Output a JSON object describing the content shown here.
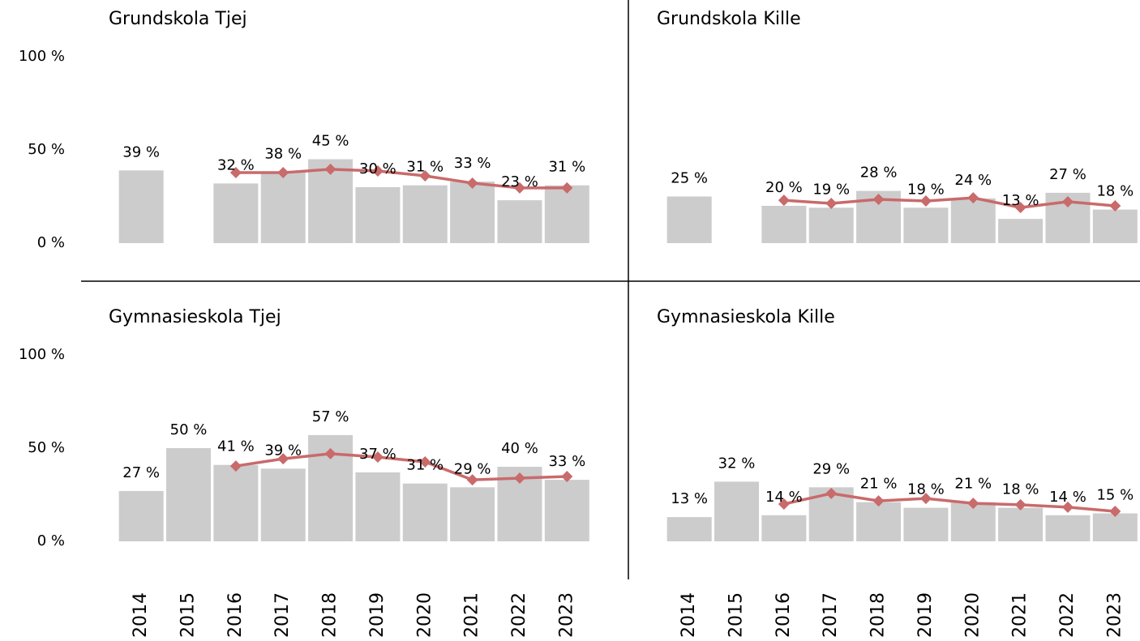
{
  "chart_data": [
    {
      "type": "combo",
      "title": "Grundskola Tjej",
      "ylim": [
        0,
        100
      ],
      "yticks": [
        {
          "value": 0,
          "label": "0 %"
        },
        {
          "value": 50,
          "label": "50 %"
        },
        {
          "value": 100,
          "label": "100 %"
        }
      ],
      "series": [
        {
          "type": "bar",
          "color": "#cccccc",
          "values": [
            39,
            null,
            32,
            38,
            45,
            30,
            31,
            33,
            23,
            31
          ],
          "value_labels": [
            "39 %",
            null,
            "32 %",
            "38 %",
            "45 %",
            "30 %",
            "31 %",
            "33 %",
            "23 %",
            "31 %"
          ]
        },
        {
          "type": "line",
          "color": "#c96a6b",
          "values": [
            null,
            null,
            37.8,
            37.8,
            39.6,
            38.7,
            36.1,
            32.2,
            29.6,
            29.6
          ]
        }
      ]
    },
    {
      "type": "combo",
      "title": "Grundskola Kille",
      "ylim": [
        0,
        100
      ],
      "series": [
        {
          "type": "bar",
          "color": "#cccccc",
          "values": [
            25,
            null,
            20,
            19,
            28,
            19,
            24,
            13,
            27,
            18
          ],
          "value_labels": [
            "25 %",
            null,
            "20 %",
            "19 %",
            "28 %",
            "19 %",
            "24 %",
            "13 %",
            "27 %",
            "18 %"
          ]
        },
        {
          "type": "line",
          "color": "#c96a6b",
          "values": [
            null,
            null,
            23,
            21.3,
            23.5,
            22.6,
            24.3,
            19.1,
            22.2,
            20
          ]
        }
      ]
    },
    {
      "type": "combo",
      "title": "Gymnasieskola Tjej",
      "ylim": [
        0,
        100
      ],
      "yticks": [
        {
          "value": 0,
          "label": "0 %"
        },
        {
          "value": 50,
          "label": "50 %"
        },
        {
          "value": 100,
          "label": "100 %"
        }
      ],
      "categories": [
        "2014",
        "2015",
        "2016",
        "2017",
        "2018",
        "2019",
        "2020",
        "2021",
        "2022",
        "2023"
      ],
      "series": [
        {
          "type": "bar",
          "color": "#cccccc",
          "values": [
            27,
            50,
            41,
            39,
            57,
            37,
            31,
            29,
            40,
            33
          ],
          "value_labels": [
            "27 %",
            "50 %",
            "41 %",
            "39 %",
            "57 %",
            "37 %",
            "31 %",
            "29 %",
            "40 %",
            "33 %"
          ]
        },
        {
          "type": "line",
          "color": "#c96a6b",
          "values": [
            null,
            null,
            40.4,
            44.3,
            47,
            45.2,
            42.6,
            33,
            33.9,
            34.8
          ]
        }
      ]
    },
    {
      "type": "combo",
      "title": "Gymnasieskola Kille",
      "ylim": [
        0,
        100
      ],
      "categories": [
        "2014",
        "2015",
        "2016",
        "2017",
        "2018",
        "2019",
        "2020",
        "2021",
        "2022",
        "2023"
      ],
      "series": [
        {
          "type": "bar",
          "color": "#cccccc",
          "values": [
            13,
            32,
            14,
            29,
            21,
            18,
            21,
            18,
            14,
            15
          ],
          "value_labels": [
            "13 %",
            "32 %",
            "14 %",
            "29 %",
            "21 %",
            "18 %",
            "21 %",
            "18 %",
            "14 %",
            "15 %"
          ]
        },
        {
          "type": "line",
          "color": "#c96a6b",
          "values": [
            null,
            null,
            20,
            25.7,
            21.7,
            23,
            20.4,
            19.6,
            18.3,
            16.1
          ]
        }
      ]
    }
  ]
}
